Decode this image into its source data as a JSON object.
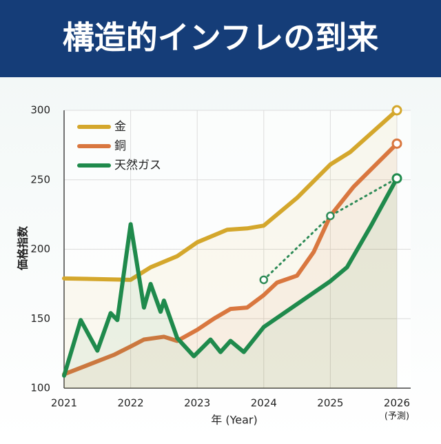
{
  "chart_data": {
    "type": "line",
    "title": "構造的インフレの到来",
    "x_label": "年 (Year)",
    "y_label": "価格指数",
    "forecast_label": "(予測)",
    "xlim": [
      2021,
      2026
    ],
    "xticks": [
      2021,
      2022,
      2023,
      2024,
      2025,
      2026
    ],
    "ylim": [
      100,
      300
    ],
    "yticks": [
      100,
      150,
      200,
      250,
      300
    ],
    "grid": true,
    "legend": "top-left",
    "series": [
      {
        "name": "金",
        "color": "#d4a72c",
        "x": [
          2021,
          2022,
          2022.3,
          2022.7,
          2023,
          2023.45,
          2023.75,
          2024,
          2024.5,
          2025,
          2025.3,
          2026
        ],
        "values": [
          179,
          178,
          187,
          195,
          205,
          214,
          215,
          217,
          237,
          261,
          270,
          300
        ]
      },
      {
        "name": "銅",
        "color": "#d9773f",
        "x": [
          2021,
          2021.75,
          2022,
          2022.2,
          2022.5,
          2022.7,
          2023,
          2023.25,
          2023.5,
          2023.75,
          2024,
          2024.2,
          2024.5,
          2024.75,
          2025,
          2025.35,
          2026
        ],
        "values": [
          110,
          124,
          130,
          135,
          137,
          134,
          142,
          150,
          157,
          158,
          167,
          176,
          181,
          198,
          224,
          245,
          276
        ]
      },
      {
        "name": "天然ガス",
        "color": "#1f8a4c",
        "x": [
          2021,
          2021.25,
          2021.5,
          2021.7,
          2021.8,
          2022,
          2022.2,
          2022.3,
          2022.45,
          2022.5,
          2022.7,
          2022.95,
          2023.2,
          2023.35,
          2023.5,
          2023.7,
          2024,
          2025,
          2025.25,
          2025.6,
          2026
        ],
        "values": [
          109,
          149,
          127,
          154,
          149,
          218,
          158,
          175,
          155,
          163,
          136,
          123,
          135,
          126,
          134,
          126,
          144,
          177,
          187,
          216,
          251
        ]
      }
    ],
    "dotted": {
      "color": "#2e8b57",
      "x": [
        2024,
        2025,
        2026
      ],
      "values": [
        178,
        224,
        251
      ]
    }
  }
}
